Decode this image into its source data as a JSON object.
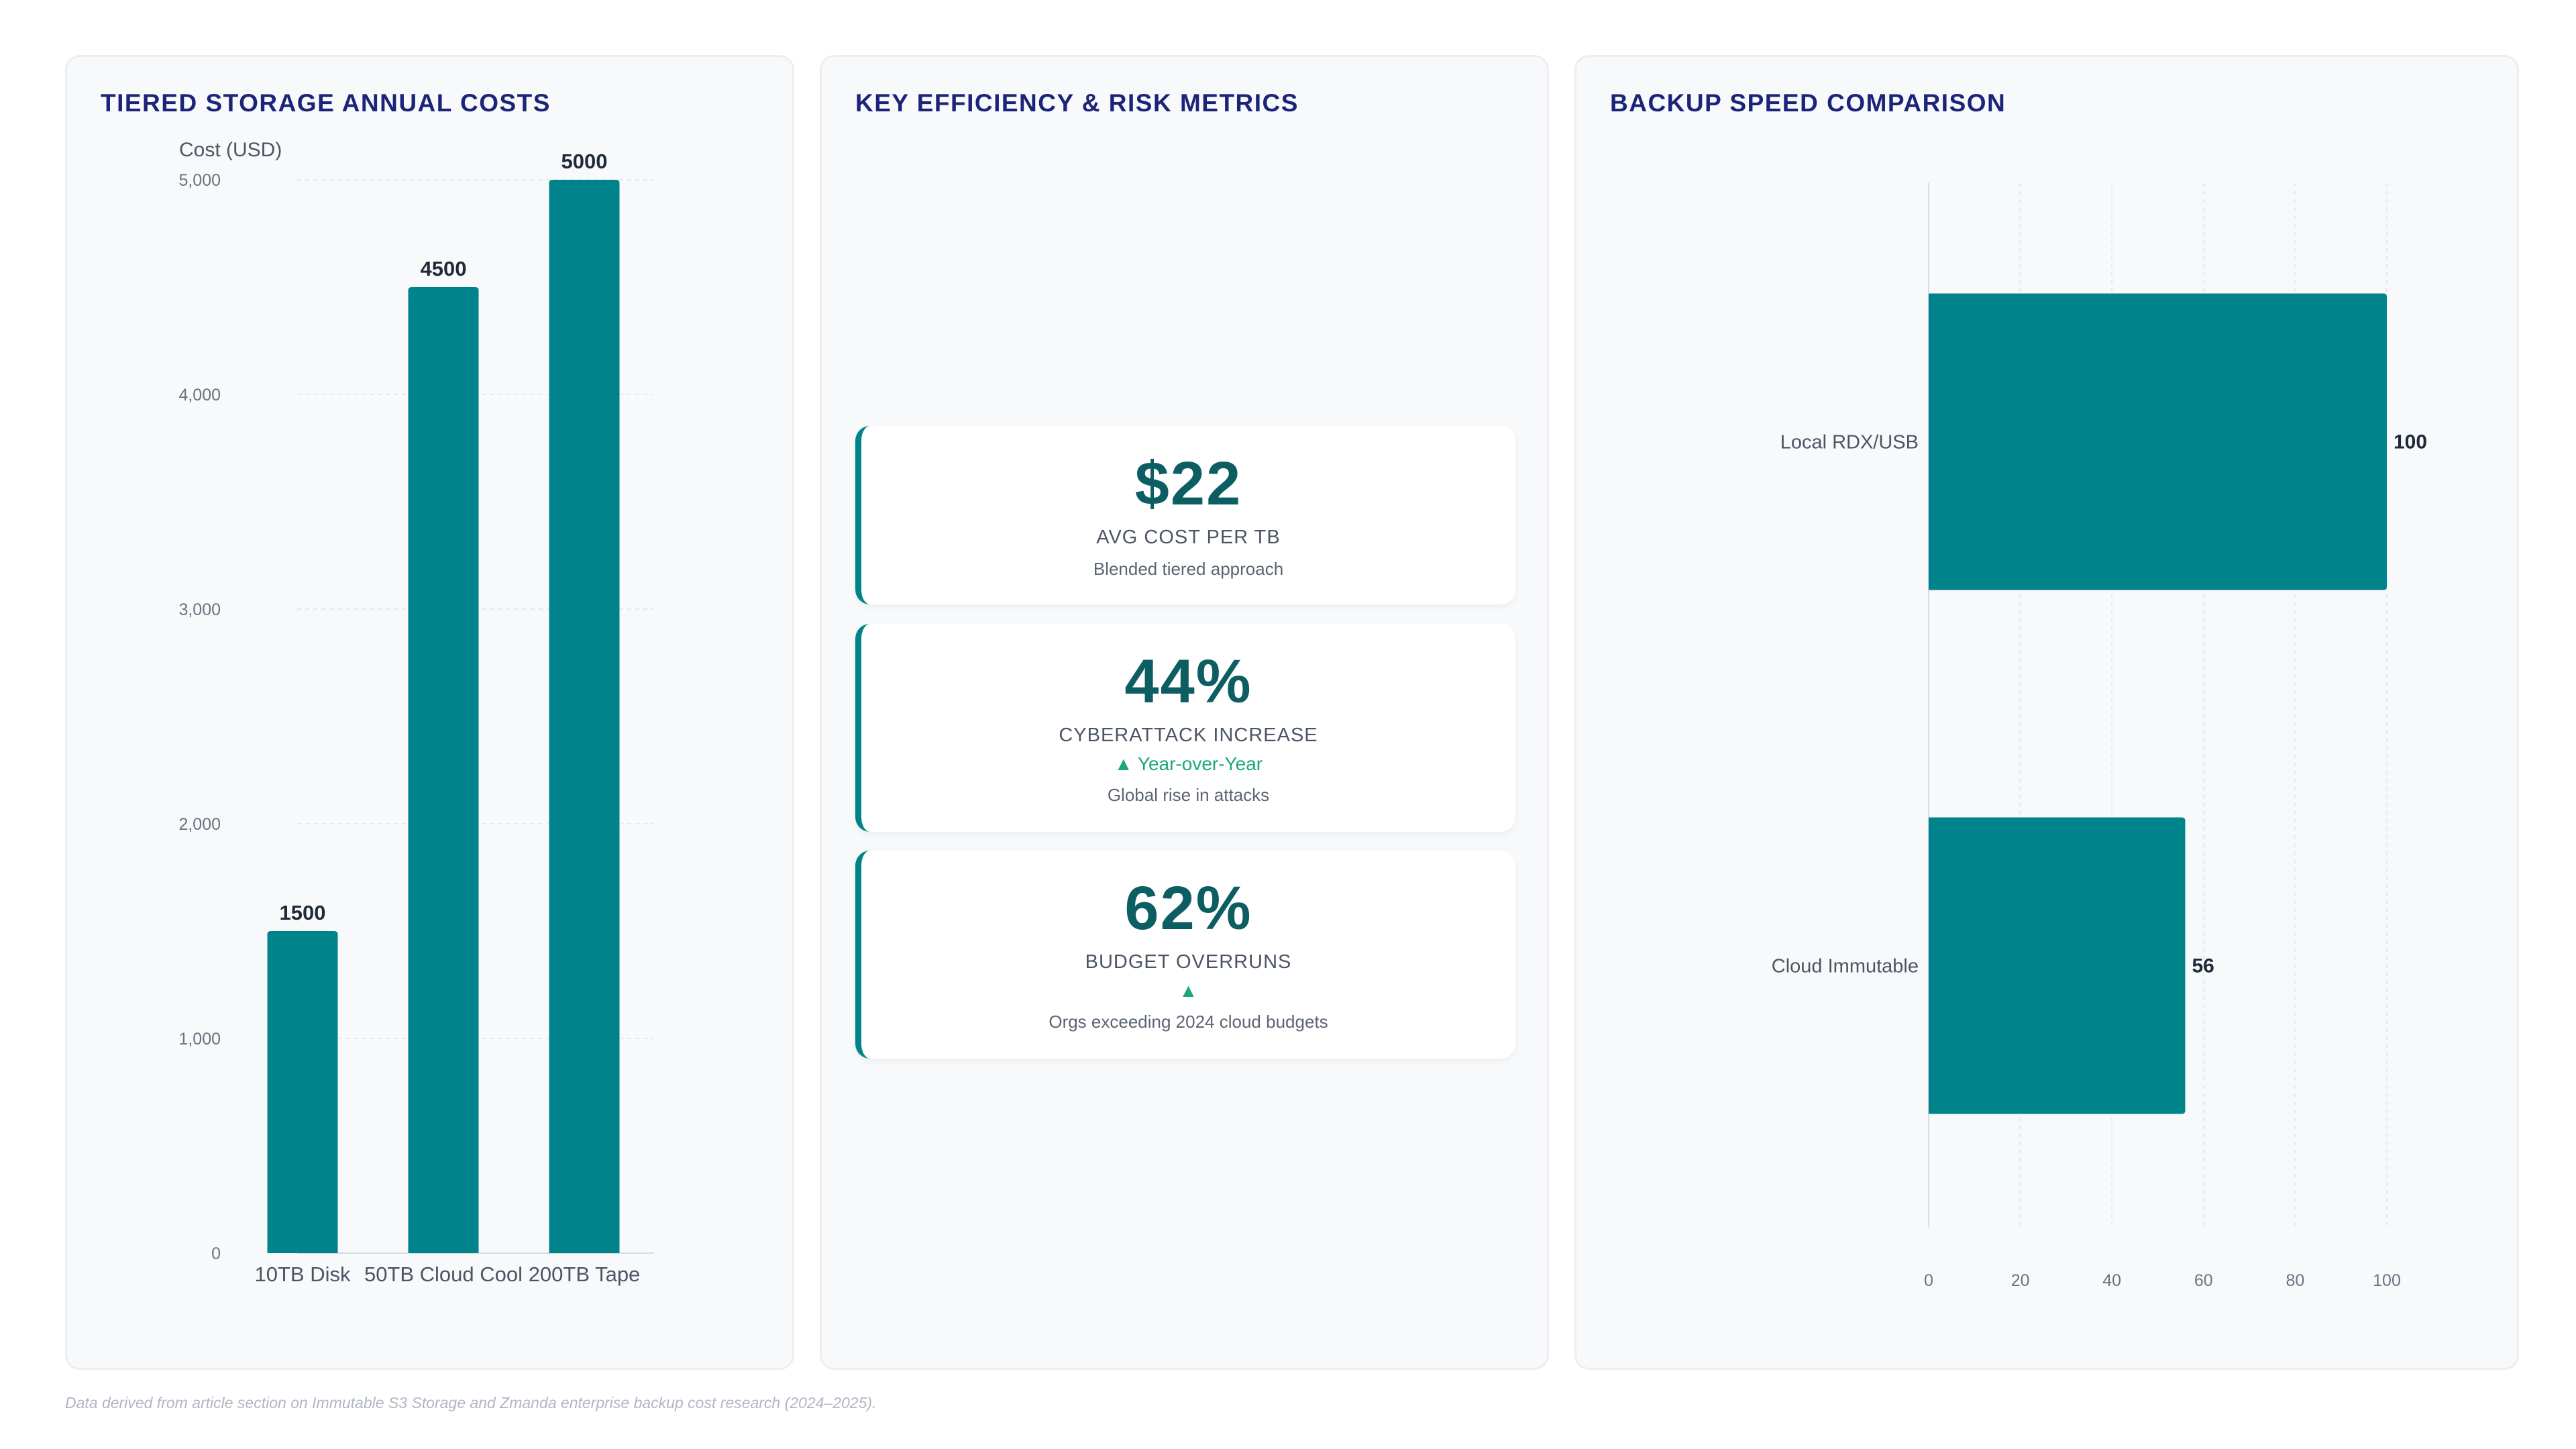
{
  "colors": {
    "bar": "#00838a",
    "title": "#1b2478",
    "kpi_value": "#0d5e62",
    "trend": "#1aa77c"
  },
  "panels": {
    "left_title": "TIERED STORAGE ANNUAL COSTS",
    "middle_title": "KEY EFFICIENCY & RISK METRICS",
    "right_title": "BACKUP SPEED COMPARISON"
  },
  "chart_data": [
    {
      "type": "bar",
      "title": "TIERED STORAGE ANNUAL COSTS",
      "ylabel": "Cost (USD)",
      "xlabel": "",
      "categories": [
        "10TB Disk",
        "50TB Cloud Cool",
        "200TB Tape"
      ],
      "values": [
        1500,
        4500,
        5000
      ],
      "data_labels": [
        "1500",
        "4500",
        "5000"
      ],
      "ylim": [
        0,
        5000
      ],
      "yticks": [
        0,
        1000,
        2000,
        3000,
        4000,
        5000
      ],
      "ytick_labels": [
        "0",
        "1,000",
        "2,000",
        "3,000",
        "4,000",
        "5,000"
      ],
      "grid": true,
      "legend": "none"
    },
    {
      "type": "bar",
      "orientation": "horizontal",
      "title": "BACKUP SPEED COMPARISON",
      "categories": [
        "Local RDX/USB",
        "Cloud Immutable"
      ],
      "values": [
        100,
        56
      ],
      "data_labels": [
        "100",
        "56"
      ],
      "xlim": [
        0,
        100
      ],
      "xticks": [
        0,
        20,
        40,
        60,
        80,
        100
      ],
      "xtick_labels": [
        "0",
        "20",
        "40",
        "60",
        "80",
        "100"
      ],
      "grid": true,
      "legend": "none"
    }
  ],
  "kpis": [
    {
      "value": "$22",
      "label": "AVG COST PER TB",
      "trend": "",
      "desc": "Blended tiered approach"
    },
    {
      "value": "44%",
      "label": "CYBERATTACK INCREASE",
      "trend": "▲ Year-over-Year",
      "desc": "Global rise in attacks"
    },
    {
      "value": "62%",
      "label": "BUDGET OVERRUNS",
      "trend": "▲",
      "desc": "Orgs exceeding 2024 cloud budgets"
    }
  ],
  "footnote": "Data derived from article section on Immutable S3 Storage and Zmanda enterprise backup cost research (2024–2025)."
}
